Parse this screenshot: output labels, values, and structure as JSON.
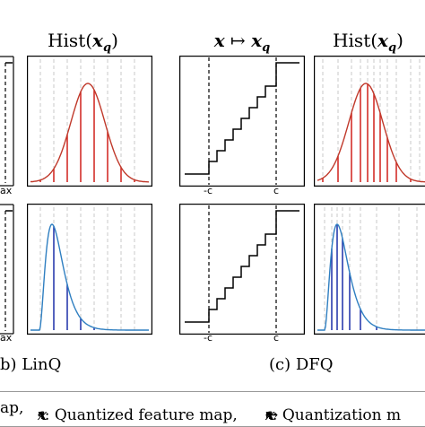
{
  "headers": {
    "hist_left_text": "Hist(",
    "hist_var": "x",
    "hist_sub": "q",
    "hist_close": ")",
    "map_from": "x",
    "map_arrow": " ↦ ",
    "map_to": "x",
    "map_sub": "q"
  },
  "panels": {
    "left_cut_tick": "ax",
    "c_neg": "-c",
    "c_pos": "c"
  },
  "subcaptions": {
    "linq": "b) LinQ",
    "dfq": "(c) DFQ"
  },
  "legend": {
    "item1_text": "ap,",
    "item2_var": "x",
    "item2_sub": "q",
    "item2_text": " : Quantized feature map,",
    "item3_from": "x",
    "item3_arrow": " ↦ ",
    "item3_to": "x",
    "item3_sub": "q",
    "item3_text": " : Quantization m"
  },
  "colors": {
    "red_curve": "#c0392b",
    "red_stem": "#d0201a",
    "blue_curve": "#2f7fc1",
    "blue_stem": "#1c2fa8",
    "grid": "#c8c8c8"
  }
}
